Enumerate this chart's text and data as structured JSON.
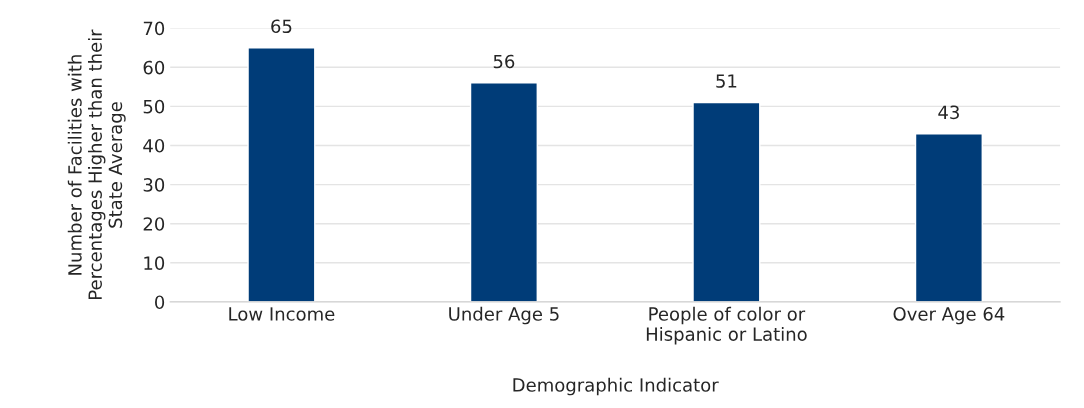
{
  "chart_data": {
    "type": "bar",
    "xlabel": "Demographic Indicator",
    "ylabel": "Number of Facilities with\nPercentages Higher than their\nState Average",
    "categories": [
      "Low Income",
      "Under Age 5",
      "People of color or\nHispanic or Latino",
      "Over Age 64"
    ],
    "values": [
      65,
      56,
      51,
      43
    ],
    "color": "#003c78",
    "ylim": [
      0,
      70
    ],
    "yticks": [
      0,
      10,
      20,
      30,
      40,
      50,
      60,
      70
    ],
    "grid": "y",
    "data_labels": true
  }
}
